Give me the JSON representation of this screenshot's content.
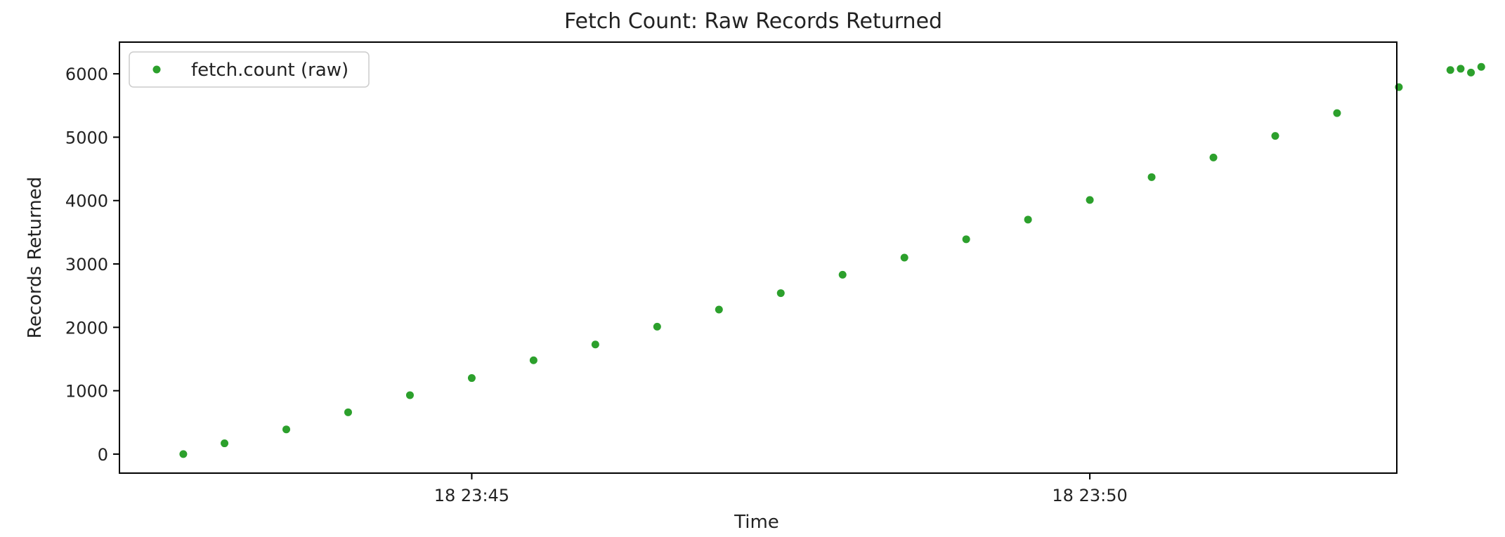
{
  "chart_data": {
    "type": "scatter",
    "title": "Fetch Count: Raw Records Returned",
    "xlabel": "Time",
    "ylabel": "Records Returned",
    "x_unit": "time",
    "xlim": [
      "18 23:42:09",
      "18 23:52:29"
    ],
    "ylim": [
      -300,
      6500
    ],
    "x_ticks": [
      {
        "t": "18 23:45:00",
        "label": "18 23:45"
      },
      {
        "t": "18 23:50:00",
        "label": "18 23:50"
      }
    ],
    "y_ticks": [
      {
        "value": 0,
        "label": "0"
      },
      {
        "value": 1000,
        "label": "1000"
      },
      {
        "value": 2000,
        "label": "2000"
      },
      {
        "value": 3000,
        "label": "3000"
      },
      {
        "value": 4000,
        "label": "4000"
      },
      {
        "value": 5000,
        "label": "5000"
      },
      {
        "value": 6000,
        "label": "6000"
      }
    ],
    "grid": false,
    "legend": {
      "position": "top-left",
      "entries": [
        "fetch.count (raw)"
      ]
    },
    "series": [
      {
        "name": "fetch.count (raw)",
        "color": "#2ca02c",
        "marker": "dot",
        "points": [
          {
            "x": "18 23:42:40",
            "y": 0
          },
          {
            "x": "18 23:43:00",
            "y": 170
          },
          {
            "x": "18 23:43:30",
            "y": 390
          },
          {
            "x": "18 23:44:00",
            "y": 660
          },
          {
            "x": "18 23:44:30",
            "y": 930
          },
          {
            "x": "18 23:45:00",
            "y": 1200
          },
          {
            "x": "18 23:45:30",
            "y": 1480
          },
          {
            "x": "18 23:46:00",
            "y": 1730
          },
          {
            "x": "18 23:46:30",
            "y": 2010
          },
          {
            "x": "18 23:47:00",
            "y": 2280
          },
          {
            "x": "18 23:47:30",
            "y": 2540
          },
          {
            "x": "18 23:48:00",
            "y": 2830
          },
          {
            "x": "18 23:48:30",
            "y": 3100
          },
          {
            "x": "18 23:49:00",
            "y": 3390
          },
          {
            "x": "18 23:49:30",
            "y": 3700
          },
          {
            "x": "18 23:50:00",
            "y": 4010
          },
          {
            "x": "18 23:50:30",
            "y": 4370
          },
          {
            "x": "18 23:51:00",
            "y": 4680
          },
          {
            "x": "18 23:51:30",
            "y": 5020
          },
          {
            "x": "18 23:52:00",
            "y": 5380
          },
          {
            "x": "18 23:52:30",
            "y": 5790
          },
          {
            "x": "18 23:52:55",
            "y": 6060
          },
          {
            "x": "18 23:53:00",
            "y": 6080
          },
          {
            "x": "18 23:53:05",
            "y": 6020
          },
          {
            "x": "18 23:53:10",
            "y": 6110
          }
        ]
      }
    ]
  }
}
